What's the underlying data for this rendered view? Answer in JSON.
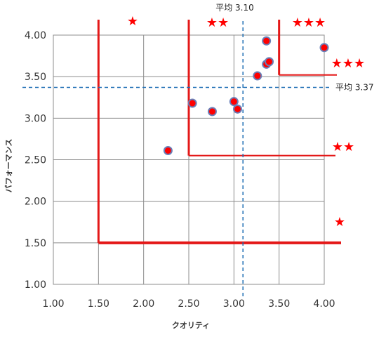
{
  "chart_data": {
    "type": "scatter",
    "xlabel": "クオリティ",
    "ylabel": "パフォーマンス",
    "xlim": [
      1.0,
      4.0
    ],
    "ylim": [
      1.0,
      4.0
    ],
    "x_ticks": [
      "1.00",
      "1.50",
      "2.00",
      "2.50",
      "3.00",
      "3.50",
      "4.00"
    ],
    "y_ticks": [
      "1.00",
      "1.50",
      "2.00",
      "2.50",
      "3.00",
      "3.50",
      "4.00"
    ],
    "grid": true,
    "points": [
      {
        "x": 2.27,
        "y": 2.61
      },
      {
        "x": 2.54,
        "y": 3.18
      },
      {
        "x": 2.76,
        "y": 3.08
      },
      {
        "x": 3.0,
        "y": 3.2
      },
      {
        "x": 3.04,
        "y": 3.11
      },
      {
        "x": 3.26,
        "y": 3.51
      },
      {
        "x": 3.36,
        "y": 3.93
      },
      {
        "x": 3.36,
        "y": 3.65
      },
      {
        "x": 3.39,
        "y": 3.68
      },
      {
        "x": 4.0,
        "y": 3.85
      }
    ],
    "average_lines": [
      {
        "axis": "x",
        "value": 3.1,
        "label": "平均 3.10"
      },
      {
        "axis": "y",
        "value": 3.37,
        "label": "平均 3.37"
      }
    ],
    "zones": [
      {
        "rating": "★",
        "x_min": 1.5,
        "y_min": 1.5
      },
      {
        "rating": "★★",
        "x_min": 2.5,
        "y_min": 2.55
      },
      {
        "rating": "★★★",
        "x_min": 3.5,
        "y_min": 3.52
      }
    ],
    "colors": {
      "point_fill": "#ff0000",
      "point_stroke": "#6a7fb8",
      "zone_line": "#e41818",
      "average_line": "#1f6fb5",
      "grid": "#8c8c8c",
      "star": "#ff0000"
    }
  }
}
